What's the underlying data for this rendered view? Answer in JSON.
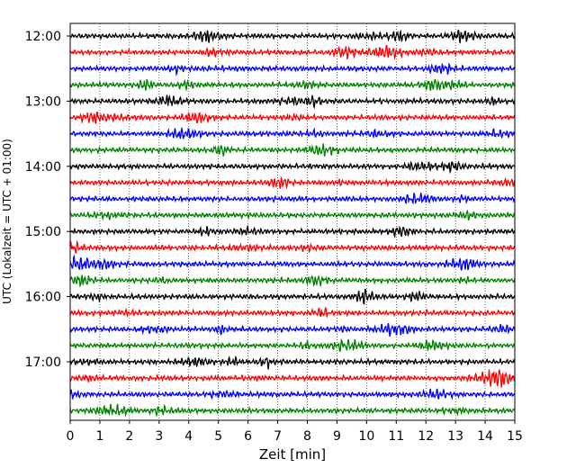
{
  "chart_data": {
    "type": "line",
    "title": "",
    "xlabel": "Zeit  [min]",
    "ylabel": "UTC (Lokalzeit = UTC + 01:00)",
    "xlim": [
      0,
      15
    ],
    "x_ticks": [
      0,
      1,
      2,
      3,
      4,
      5,
      6,
      7,
      8,
      9,
      10,
      11,
      12,
      13,
      14,
      15
    ],
    "x_tick_labels": [
      "0",
      "1",
      "2",
      "3",
      "4",
      "5",
      "6",
      "7",
      "8",
      "9",
      "10",
      "11",
      "12",
      "13",
      "14",
      "15"
    ],
    "y_tick_labels": [
      "12:00",
      "13:00",
      "14:00",
      "15:00",
      "16:00",
      "17:00"
    ],
    "traces_per_hour": 4,
    "trace_minutes": 15,
    "trace_start_times": [
      "12:00",
      "12:15",
      "12:30",
      "12:45",
      "13:00",
      "13:15",
      "13:30",
      "13:45",
      "14:00",
      "14:15",
      "14:30",
      "14:45",
      "15:00",
      "15:15",
      "15:30",
      "15:45",
      "16:00",
      "16:15",
      "16:30",
      "16:45",
      "17:00",
      "17:15",
      "17:30",
      "17:45"
    ],
    "trace_colors": [
      "#000000",
      "#ff0000",
      "#0000ff",
      "#008000"
    ],
    "grid": "vertical dotted at each minute",
    "legend": "none"
  }
}
